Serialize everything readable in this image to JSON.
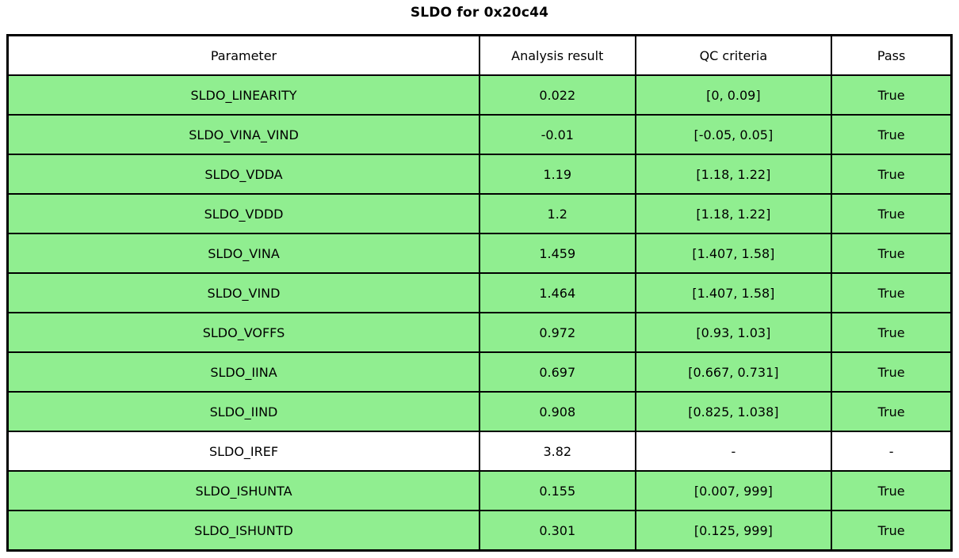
{
  "chart_data": {
    "type": "table",
    "title": "SLDO for 0x20c44",
    "columns": [
      "Parameter",
      "Analysis result",
      "QC criteria",
      "Pass"
    ],
    "rows": [
      {
        "parameter": "SLDO_LINEARITY",
        "analysis_result": "0.022",
        "qc_criteria": "[0, 0.09]",
        "pass": "True",
        "bg": "#90EE90"
      },
      {
        "parameter": "SLDO_VINA_VIND",
        "analysis_result": "-0.01",
        "qc_criteria": "[-0.05, 0.05]",
        "pass": "True",
        "bg": "#90EE90"
      },
      {
        "parameter": "SLDO_VDDA",
        "analysis_result": "1.19",
        "qc_criteria": "[1.18, 1.22]",
        "pass": "True",
        "bg": "#90EE90"
      },
      {
        "parameter": "SLDO_VDDD",
        "analysis_result": "1.2",
        "qc_criteria": "[1.18, 1.22]",
        "pass": "True",
        "bg": "#90EE90"
      },
      {
        "parameter": "SLDO_VINA",
        "analysis_result": "1.459",
        "qc_criteria": "[1.407, 1.58]",
        "pass": "True",
        "bg": "#90EE90"
      },
      {
        "parameter": "SLDO_VIND",
        "analysis_result": "1.464",
        "qc_criteria": "[1.407, 1.58]",
        "pass": "True",
        "bg": "#90EE90"
      },
      {
        "parameter": "SLDO_VOFFS",
        "analysis_result": "0.972",
        "qc_criteria": "[0.93, 1.03]",
        "pass": "True",
        "bg": "#90EE90"
      },
      {
        "parameter": "SLDO_IINA",
        "analysis_result": "0.697",
        "qc_criteria": "[0.667, 0.731]",
        "pass": "True",
        "bg": "#90EE90"
      },
      {
        "parameter": "SLDO_IIND",
        "analysis_result": "0.908",
        "qc_criteria": "[0.825, 1.038]",
        "pass": "True",
        "bg": "#90EE90"
      },
      {
        "parameter": "SLDO_IREF",
        "analysis_result": "3.82",
        "qc_criteria": "-",
        "pass": "-",
        "bg": "#FFFFFF"
      },
      {
        "parameter": "SLDO_ISHUNTA",
        "analysis_result": "0.155",
        "qc_criteria": "[0.007, 999]",
        "pass": "True",
        "bg": "#90EE90"
      },
      {
        "parameter": "SLDO_ISHUNTD",
        "analysis_result": "0.301",
        "qc_criteria": "[0.125, 999]",
        "pass": "True",
        "bg": "#90EE90"
      }
    ],
    "colors": {
      "pass_row_bg": "#90EE90",
      "no_qc_row_bg": "#FFFFFF",
      "header_bg": "#FFFFFF",
      "border": "#000000",
      "text": "#000000"
    },
    "layout": {
      "grid": "full-borders",
      "header_row": true,
      "legend": "none"
    }
  }
}
